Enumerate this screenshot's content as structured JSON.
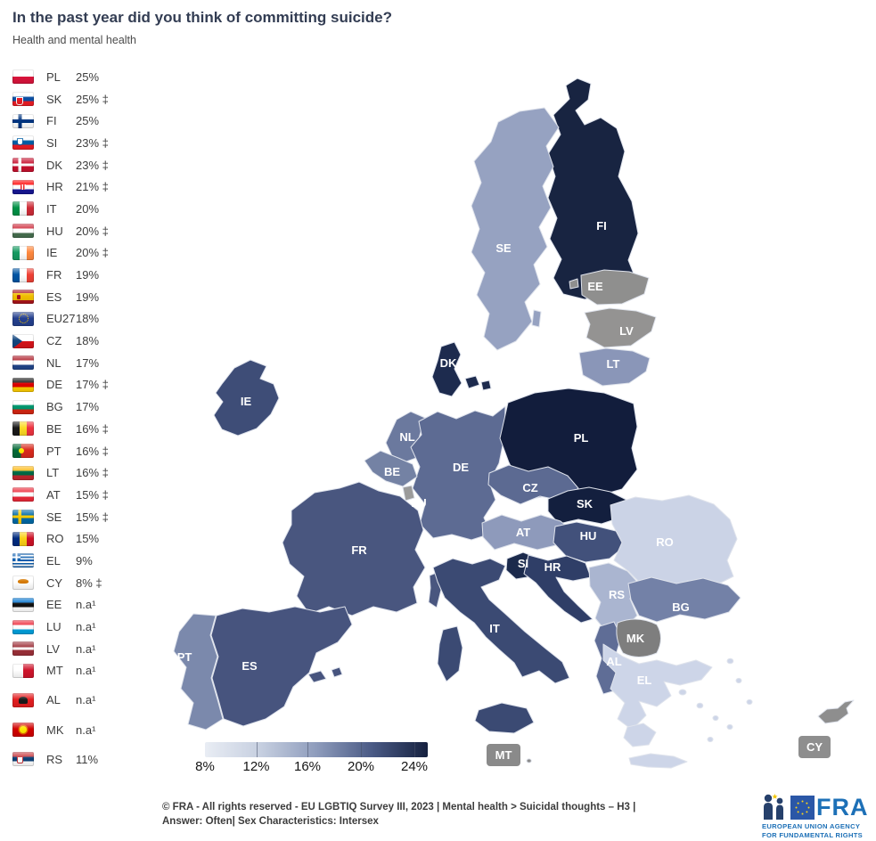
{
  "title": "In the past year did you think of committing suicide?",
  "subtitle": "Health and mental health",
  "legend": {
    "items": [
      {
        "code": "PL",
        "value": "25%",
        "flag": "PL",
        "gap": false
      },
      {
        "code": "SK",
        "value": "25% ‡",
        "flag": "SK",
        "gap": false
      },
      {
        "code": "FI",
        "value": "25%",
        "flag": "FI",
        "gap": false
      },
      {
        "code": "SI",
        "value": "23% ‡",
        "flag": "SI",
        "gap": false
      },
      {
        "code": "DK",
        "value": "23% ‡",
        "flag": "DK",
        "gap": false
      },
      {
        "code": "HR",
        "value": "21% ‡",
        "flag": "HR",
        "gap": false
      },
      {
        "code": "IT",
        "value": "20%",
        "flag": "IT",
        "gap": false
      },
      {
        "code": "HU",
        "value": "20% ‡",
        "flag": "HU",
        "gap": false
      },
      {
        "code": "IE",
        "value": "20% ‡",
        "flag": "IE",
        "gap": false
      },
      {
        "code": "FR",
        "value": "19%",
        "flag": "FR",
        "gap": false
      },
      {
        "code": "ES",
        "value": "19%",
        "flag": "ES",
        "gap": false
      },
      {
        "code": "EU27",
        "value": "18%",
        "flag": "EU",
        "gap": false
      },
      {
        "code": "CZ",
        "value": "18%",
        "flag": "CZ",
        "gap": false
      },
      {
        "code": "NL",
        "value": "17%",
        "flag": "NL",
        "gap": false
      },
      {
        "code": "DE",
        "value": "17% ‡",
        "flag": "DE",
        "gap": false
      },
      {
        "code": "BG",
        "value": "17%",
        "flag": "BG",
        "gap": false
      },
      {
        "code": "BE",
        "value": "16% ‡",
        "flag": "BE",
        "gap": false
      },
      {
        "code": "PT",
        "value": "16% ‡",
        "flag": "PT",
        "gap": false
      },
      {
        "code": "LT",
        "value": "16% ‡",
        "flag": "LT",
        "gap": false
      },
      {
        "code": "AT",
        "value": "15% ‡",
        "flag": "AT",
        "gap": false
      },
      {
        "code": "SE",
        "value": "15% ‡",
        "flag": "SE",
        "gap": false
      },
      {
        "code": "RO",
        "value": "15%",
        "flag": "RO",
        "gap": false
      },
      {
        "code": "EL",
        "value": "9%",
        "flag": "EL",
        "gap": false
      },
      {
        "code": "CY",
        "value": "8% ‡",
        "flag": "CY",
        "gap": false
      },
      {
        "code": "EE",
        "value": "n.a¹",
        "flag": "EE",
        "gap": false
      },
      {
        "code": "LU",
        "value": "n.a¹",
        "flag": "LU",
        "gap": false
      },
      {
        "code": "LV",
        "value": "n.a¹",
        "flag": "LV",
        "gap": false
      },
      {
        "code": "MT",
        "value": "n.a¹",
        "flag": "MT",
        "gap": false
      },
      {
        "code": "AL",
        "value": "n.a¹",
        "flag": "AL",
        "gap": true
      },
      {
        "code": "MK",
        "value": "n.a¹",
        "flag": "MK",
        "gap": true
      },
      {
        "code": "RS",
        "value": "11%",
        "flag": "RS",
        "gap": true
      }
    ]
  },
  "map": {
    "border_color": "#dfe3ec",
    "na_color": "#8a8a8a",
    "countries": [
      {
        "code": "FI",
        "color": "#182441"
      },
      {
        "code": "SE",
        "color": "#96a2c1"
      },
      {
        "code": "EE",
        "color": "#8f8f8e"
      },
      {
        "code": "LV",
        "color": "#949392"
      },
      {
        "code": "LT",
        "color": "#8a96b8"
      },
      {
        "code": "DK",
        "color": "#1d2b4e"
      },
      {
        "code": "IE",
        "color": "#3e4d77"
      },
      {
        "code": "NL",
        "color": "#6b799e"
      },
      {
        "code": "DE",
        "color": "#5d6b93"
      },
      {
        "code": "BE",
        "color": "#7482a4"
      },
      {
        "code": "LU",
        "color": "#9b9b9b"
      },
      {
        "code": "PL",
        "color": "#121d3c"
      },
      {
        "code": "CZ",
        "color": "#5c6a92"
      },
      {
        "code": "SK",
        "color": "#131f3e"
      },
      {
        "code": "AT",
        "color": "#8e9abb"
      },
      {
        "code": "HU",
        "color": "#42517b"
      },
      {
        "code": "FR",
        "color": "#49567f"
      },
      {
        "code": "RO",
        "color": "#cbd3e6"
      },
      {
        "code": "SI",
        "color": "#1b2a4c"
      },
      {
        "code": "HR",
        "color": "#2f3e67"
      },
      {
        "code": "RS",
        "color": "#aab5d0"
      },
      {
        "code": "BG",
        "color": "#7381a7"
      },
      {
        "code": "IT",
        "color": "#3b4a73"
      },
      {
        "code": "PT",
        "color": "#7b89ac"
      },
      {
        "code": "ES",
        "color": "#47547e"
      },
      {
        "code": "AL",
        "color": "#5f6d96"
      },
      {
        "code": "MK",
        "color": "#7e7e7e"
      },
      {
        "code": "EL",
        "color": "#cdd5e8"
      },
      {
        "code": "MT",
        "color": "#8a8a8a",
        "badge": true
      },
      {
        "code": "CY",
        "color": "#8e8e8e",
        "badge": true
      }
    ]
  },
  "scale": {
    "gradient_stops": [
      "#e9edf4",
      "#c6cfe0",
      "#8e9cbc",
      "#4a5a85",
      "#16213f"
    ],
    "tick_labels": [
      "8%",
      "12%",
      "16%",
      "20%",
      "24%"
    ]
  },
  "footer": {
    "line1": "© FRA - All rights reserved - EU LGBTIQ Survey III, 2023 | Mental health > Suicidal thoughts – H3 |",
    "line2": "Answer: Often| Sex Characteristics: Intersex"
  },
  "logo": {
    "acronym": "FRA",
    "caption_line1": "EUROPEAN UNION AGENCY",
    "caption_line2": "FOR FUNDAMENTAL RIGHTS"
  },
  "chart_data": {
    "type": "choropleth",
    "title": "In the past year did you think of committing suicide?",
    "subtitle": "Health and mental health",
    "unit": "%",
    "source": "© FRA - All rights reserved - EU LGBTIQ Survey III, 2023 | Mental health > Suicidal thoughts – H3 | Answer: Often| Sex Characteristics: Intersex",
    "legend_scale": {
      "min": 8,
      "max": 24,
      "tick_labels": [
        "8%",
        "12%",
        "16%",
        "20%",
        "24%"
      ],
      "low_color": "#e9edf4",
      "high_color": "#16213f"
    },
    "values": [
      {
        "country": "PL",
        "value": 25,
        "note": ""
      },
      {
        "country": "SK",
        "value": 25,
        "note": "‡"
      },
      {
        "country": "FI",
        "value": 25,
        "note": ""
      },
      {
        "country": "SI",
        "value": 23,
        "note": "‡"
      },
      {
        "country": "DK",
        "value": 23,
        "note": "‡"
      },
      {
        "country": "HR",
        "value": 21,
        "note": "‡"
      },
      {
        "country": "IT",
        "value": 20,
        "note": ""
      },
      {
        "country": "HU",
        "value": 20,
        "note": "‡"
      },
      {
        "country": "IE",
        "value": 20,
        "note": "‡"
      },
      {
        "country": "FR",
        "value": 19,
        "note": ""
      },
      {
        "country": "ES",
        "value": 19,
        "note": ""
      },
      {
        "country": "EU27",
        "value": 18,
        "note": ""
      },
      {
        "country": "CZ",
        "value": 18,
        "note": ""
      },
      {
        "country": "NL",
        "value": 17,
        "note": ""
      },
      {
        "country": "DE",
        "value": 17,
        "note": "‡"
      },
      {
        "country": "BG",
        "value": 17,
        "note": ""
      },
      {
        "country": "BE",
        "value": 16,
        "note": "‡"
      },
      {
        "country": "PT",
        "value": 16,
        "note": "‡"
      },
      {
        "country": "LT",
        "value": 16,
        "note": "‡"
      },
      {
        "country": "AT",
        "value": 15,
        "note": "‡"
      },
      {
        "country": "SE",
        "value": 15,
        "note": "‡"
      },
      {
        "country": "RO",
        "value": 15,
        "note": ""
      },
      {
        "country": "EL",
        "value": 9,
        "note": ""
      },
      {
        "country": "CY",
        "value": 8,
        "note": "‡"
      },
      {
        "country": "EE",
        "value": "n.a¹",
        "note": ""
      },
      {
        "country": "LU",
        "value": "n.a¹",
        "note": ""
      },
      {
        "country": "LV",
        "value": "n.a¹",
        "note": ""
      },
      {
        "country": "MT",
        "value": "n.a¹",
        "note": ""
      },
      {
        "country": "AL",
        "value": "n.a¹",
        "note": ""
      },
      {
        "country": "MK",
        "value": "n.a¹",
        "note": ""
      },
      {
        "country": "RS",
        "value": 11,
        "note": ""
      }
    ]
  }
}
